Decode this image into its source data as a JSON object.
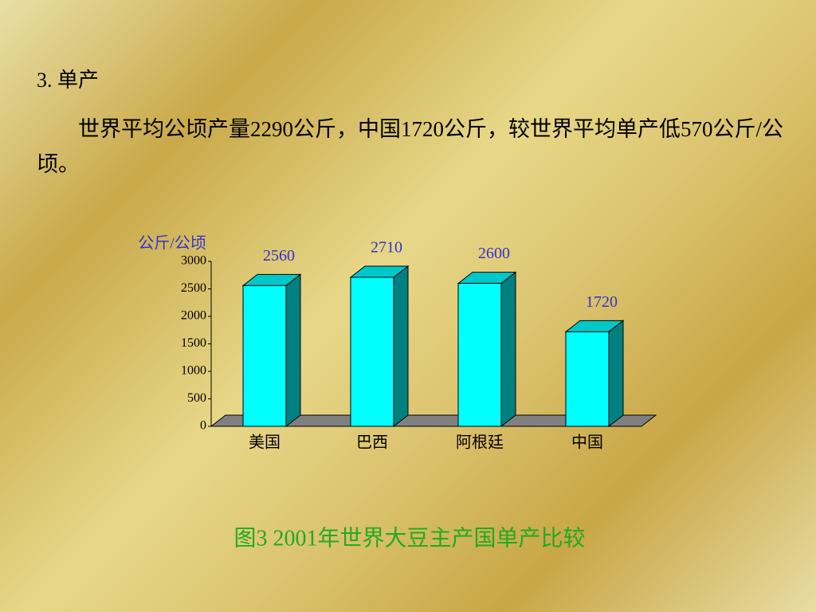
{
  "heading": "3.  单产",
  "paragraph": "世界平均公顷产量2290公斤，中国1720公斤，较世界平均单产低570公斤/公顷。",
  "chart_data": {
    "type": "bar3d",
    "title": "图3   2001年世界大豆主产国单产比较",
    "y_label": "公斤/公顷",
    "categories": [
      "美国",
      "巴西",
      "阿根廷",
      "中国"
    ],
    "values": [
      2560,
      2710,
      2600,
      1720
    ],
    "color": "#00ffff",
    "ylim": [
      0,
      3000
    ],
    "yticks": [
      0,
      500,
      1000,
      1500,
      2000,
      2500,
      3000
    ]
  }
}
